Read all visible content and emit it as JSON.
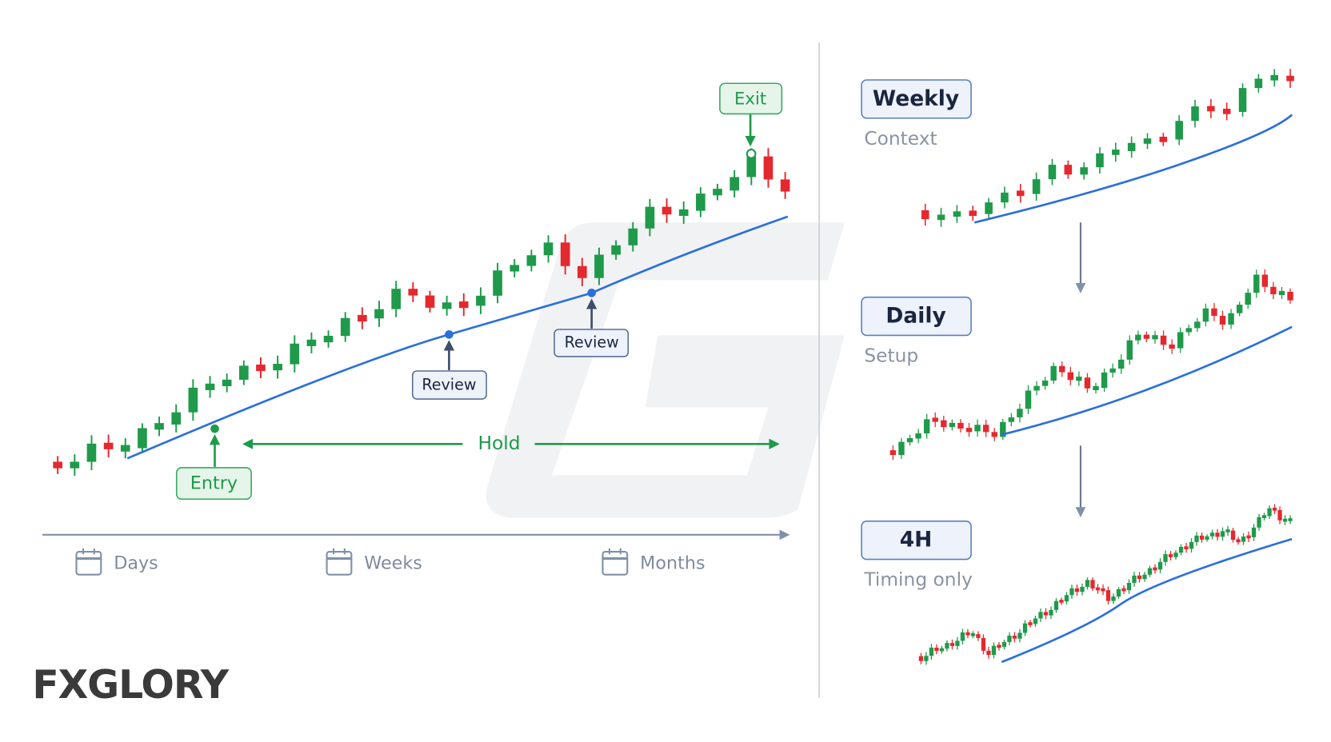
{
  "main_panel": {
    "labels": {
      "exit": "Exit",
      "entry": "Entry",
      "review_1": "Review",
      "review_2": "Review",
      "hold": "Hold"
    },
    "timeline": [
      "Days",
      "Weeks",
      "Months"
    ]
  },
  "timeframes": [
    {
      "label": "Weekly",
      "caption": "Context"
    },
    {
      "label": "Daily",
      "caption": "Setup"
    },
    {
      "label": "4H",
      "caption": "Timing only"
    }
  ],
  "logo": "FXGLORY"
}
